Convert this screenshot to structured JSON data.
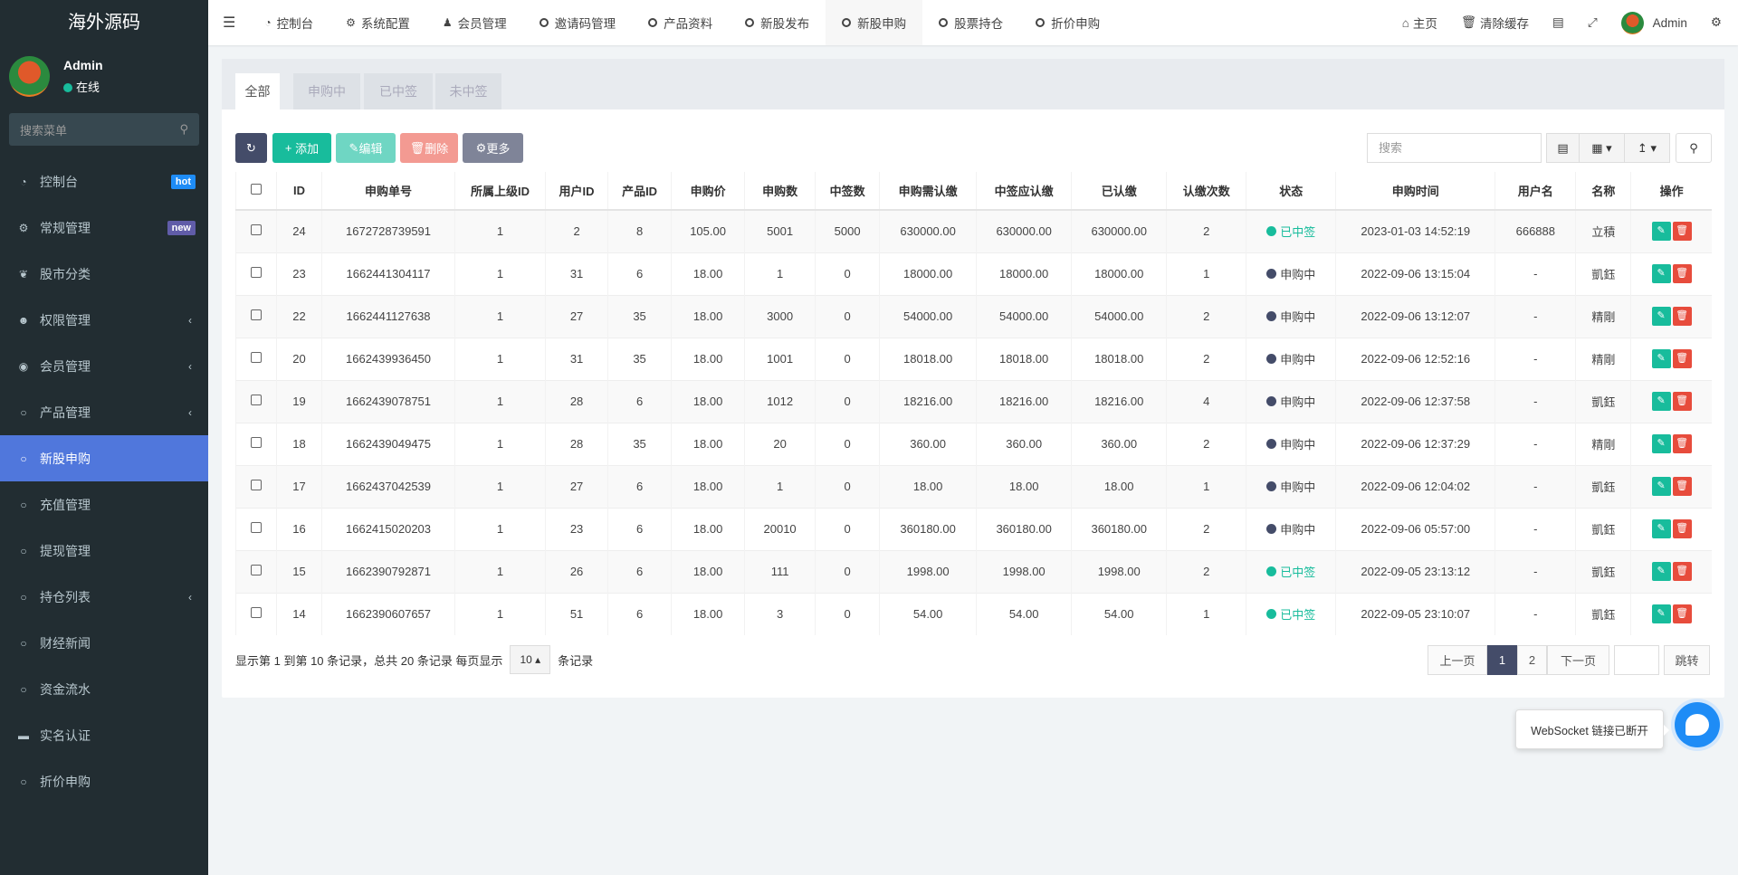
{
  "app": {
    "logo": "海外源码",
    "user": "Admin",
    "status": "在线",
    "search_placeholder": "搜索菜单"
  },
  "sidebar": {
    "items": [
      {
        "label": "控制台",
        "icon": "dashboard-icon",
        "badge": "hot",
        "badge_color": "#1e8cf6"
      },
      {
        "label": "常规管理",
        "icon": "cogs-icon",
        "badge": "new",
        "badge_color": "#605ca8"
      },
      {
        "label": "股市分类",
        "icon": "leaf-icon"
      },
      {
        "label": "权限管理",
        "icon": "users-icon",
        "chevron": true
      },
      {
        "label": "会员管理",
        "icon": "user-circle-icon",
        "chevron": true
      },
      {
        "label": "产品管理",
        "icon": "circle-icon",
        "chevron": true
      },
      {
        "label": "新股申购",
        "icon": "circle-icon",
        "active": true
      },
      {
        "label": "充值管理",
        "icon": "circle-icon"
      },
      {
        "label": "提现管理",
        "icon": "circle-icon"
      },
      {
        "label": "持仓列表",
        "icon": "circle-icon",
        "chevron": true
      },
      {
        "label": "财经新闻",
        "icon": "circle-icon"
      },
      {
        "label": "资金流水",
        "icon": "circle-icon"
      },
      {
        "label": "实名认证",
        "icon": "credit-card-icon"
      },
      {
        "label": "折价申购",
        "icon": "circle-icon"
      }
    ]
  },
  "topnav": {
    "items": [
      {
        "label": "控制台",
        "icon": "dashboard-icon"
      },
      {
        "label": "系统配置",
        "icon": "gear-icon"
      },
      {
        "label": "会员管理",
        "icon": "user-icon"
      },
      {
        "label": "邀请码管理",
        "icon": "circle-icon"
      },
      {
        "label": "产品资料",
        "icon": "circle-icon"
      },
      {
        "label": "新股发布",
        "icon": "circle-icon"
      },
      {
        "label": "新股申购",
        "icon": "circle-icon",
        "active": true
      },
      {
        "label": "股票持仓",
        "icon": "circle-icon"
      },
      {
        "label": "折价申购",
        "icon": "circle-icon"
      }
    ],
    "home": "主页",
    "clear_cache": "清除缓存",
    "user": "Admin"
  },
  "tabs": [
    "全部",
    "申购中",
    "已中签",
    "未中签"
  ],
  "toolbar": {
    "add": "添加",
    "edit": "编辑",
    "delete": "删除",
    "more": "更多",
    "search_placeholder": "搜索"
  },
  "table": {
    "columns": [
      "ID",
      "申购单号",
      "所属上级ID",
      "用户ID",
      "产品ID",
      "申购价",
      "申购数",
      "中签数",
      "申购需认缴",
      "中签应认缴",
      "已认缴",
      "认缴次数",
      "状态",
      "申购时间",
      "用户名",
      "名称",
      "操作"
    ],
    "rows": [
      [
        "24",
        "1672728739591",
        "1",
        "2",
        "8",
        "105.00",
        "5001",
        "5000",
        "630000.00",
        "630000.00",
        "630000.00",
        "2",
        "已中签",
        "2023-01-03 14:52:19",
        "666888",
        "立積"
      ],
      [
        "23",
        "1662441304117",
        "1",
        "31",
        "6",
        "18.00",
        "1",
        "0",
        "18000.00",
        "18000.00",
        "18000.00",
        "1",
        "申购中",
        "2022-09-06 13:15:04",
        "-",
        "凱鈺"
      ],
      [
        "22",
        "1662441127638",
        "1",
        "27",
        "35",
        "18.00",
        "3000",
        "0",
        "54000.00",
        "54000.00",
        "54000.00",
        "2",
        "申购中",
        "2022-09-06 13:12:07",
        "-",
        "精剛"
      ],
      [
        "20",
        "1662439936450",
        "1",
        "31",
        "35",
        "18.00",
        "1001",
        "0",
        "18018.00",
        "18018.00",
        "18018.00",
        "2",
        "申购中",
        "2022-09-06 12:52:16",
        "-",
        "精剛"
      ],
      [
        "19",
        "1662439078751",
        "1",
        "28",
        "6",
        "18.00",
        "1012",
        "0",
        "18216.00",
        "18216.00",
        "18216.00",
        "4",
        "申购中",
        "2022-09-06 12:37:58",
        "-",
        "凱鈺"
      ],
      [
        "18",
        "1662439049475",
        "1",
        "28",
        "35",
        "18.00",
        "20",
        "0",
        "360.00",
        "360.00",
        "360.00",
        "2",
        "申购中",
        "2022-09-06 12:37:29",
        "-",
        "精剛"
      ],
      [
        "17",
        "1662437042539",
        "1",
        "27",
        "6",
        "18.00",
        "1",
        "0",
        "18.00",
        "18.00",
        "18.00",
        "1",
        "申购中",
        "2022-09-06 12:04:02",
        "-",
        "凱鈺"
      ],
      [
        "16",
        "1662415020203",
        "1",
        "23",
        "6",
        "18.00",
        "20010",
        "0",
        "360180.00",
        "360180.00",
        "360180.00",
        "2",
        "申购中",
        "2022-09-06 05:57:00",
        "-",
        "凱鈺"
      ],
      [
        "15",
        "1662390792871",
        "1",
        "26",
        "6",
        "18.00",
        "111",
        "0",
        "1998.00",
        "1998.00",
        "1998.00",
        "2",
        "已中签",
        "2022-09-05 23:13:12",
        "-",
        "凱鈺"
      ],
      [
        "14",
        "1662390607657",
        "1",
        "51",
        "6",
        "18.00",
        "3",
        "0",
        "54.00",
        "54.00",
        "54.00",
        "1",
        "已中签",
        "2022-09-05 23:10:07",
        "-",
        "凱鈺"
      ]
    ],
    "status_colors": {
      "已中签": "#18bc9c",
      "申购中": "#444c69"
    }
  },
  "pagination": {
    "info": "显示第 1 到第 10 条记录，总共 20 条记录 每页显示",
    "page_size": "10",
    "suffix": "条记录",
    "prev": "上一页",
    "pages": [
      "1",
      "2"
    ],
    "current": "1",
    "next": "下一页",
    "jump": "跳转"
  },
  "websocket": {
    "message": "WebSocket 链接已断开"
  }
}
